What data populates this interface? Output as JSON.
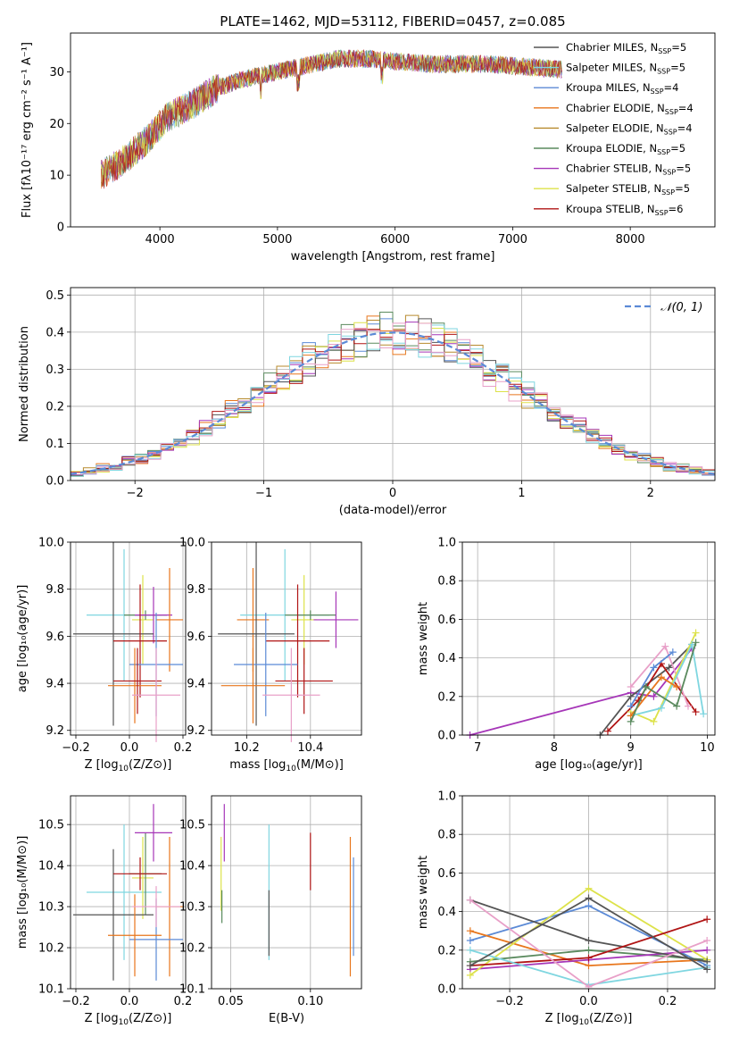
{
  "title": "PLATE=1462, MJD=53112, FIBERID=0457, z=0.085",
  "series_colors": [
    "#5b8ad6",
    "#e8761c",
    "#b78a2d",
    "#5a8a5e",
    "#a636b8",
    "#dde24a",
    "#555555",
    "#b01414",
    "#7fd6e0",
    "#e8a0c8"
  ],
  "chart_data": [
    {
      "type": "line",
      "id": "spectrum",
      "xlabel": "wavelength [Angstrom, rest frame]",
      "ylabel": "Flux [fλ10⁻¹⁷ erg cm⁻² s⁻¹ A⁻¹]",
      "xlim": [
        3240,
        8720
      ],
      "ylim": [
        0,
        37.5
      ],
      "xticks": [
        4000,
        5000,
        6000,
        7000,
        8000
      ],
      "yticks": [
        0,
        10,
        20,
        30
      ],
      "grid": false,
      "legend_position": "upper-right",
      "continuum": {
        "x": [
          3500,
          3700,
          3900,
          4050,
          4300,
          4500,
          4700,
          4900,
          5100,
          5300,
          5500,
          5800,
          6000,
          6300,
          6600,
          6800,
          7100,
          7400
        ],
        "y": [
          10,
          13,
          17,
          21,
          24,
          27,
          28.5,
          29.5,
          30.5,
          31.5,
          32.5,
          32.5,
          32,
          31.5,
          31.5,
          31.5,
          31,
          30.5
        ]
      },
      "series": [
        {
          "name": "Chabrier MILES, N_SSP=5",
          "label_main": "Chabrier MILES, N",
          "label_sub": "SSP",
          "label_tail": "=5"
        },
        {
          "name": "Salpeter MILES, N_SSP=5",
          "label_main": "Salpeter MILES, N",
          "label_sub": "SSP",
          "label_tail": "=5"
        },
        {
          "name": "Kroupa MILES, N_SSP=4",
          "label_main": "Kroupa MILES, N",
          "label_sub": "SSP",
          "label_tail": "=4"
        },
        {
          "name": "Chabrier ELODIE, N_SSP=4",
          "label_main": "Chabrier ELODIE, N",
          "label_sub": "SSP",
          "label_tail": "=4"
        },
        {
          "name": "Salpeter ELODIE, N_SSP=4",
          "label_main": "Salpeter ELODIE, N",
          "label_sub": "SSP",
          "label_tail": "=4"
        },
        {
          "name": "Kroupa ELODIE, N_SSP=5",
          "label_main": "Kroupa ELODIE, N",
          "label_sub": "SSP",
          "label_tail": "=5"
        },
        {
          "name": "Chabrier STELIB, N_SSP=5",
          "label_main": "Chabrier STELIB, N",
          "label_sub": "SSP",
          "label_tail": "=5"
        },
        {
          "name": "Salpeter STELIB, N_SSP=5",
          "label_main": "Salpeter STELIB, N",
          "label_sub": "SSP",
          "label_tail": "=5"
        },
        {
          "name": "Kroupa STELIB, N_SSP=6",
          "label_main": "Kroupa STELIB, N",
          "label_sub": "SSP",
          "label_tail": "=6"
        }
      ]
    },
    {
      "type": "line",
      "id": "residuals",
      "xlabel": "(data-model)/error",
      "ylabel": "Normed distribution",
      "xlim": [
        -2.5,
        2.5
      ],
      "ylim": [
        0,
        0.52
      ],
      "xticks": [
        -2,
        -1,
        0,
        1,
        2
      ],
      "yticks": [
        0.0,
        0.1,
        0.2,
        0.3,
        0.4,
        0.5
      ],
      "grid": true,
      "legend_position": "upper-right",
      "reference_curve": {
        "name": "N(0,1)",
        "label": "𝒩(0, 1)",
        "mean": 0,
        "sigma": 1
      },
      "histogram_bin_width": 0.1
    },
    {
      "type": "scatter",
      "id": "age-vs-Z",
      "xlabel_main": "Z [log",
      "xlabel_sub": "10",
      "xlabel_tail": "(Z/Z⊙)]",
      "ylabel": "age  [log₁₀(age/yr)]",
      "xlim": [
        -0.22,
        0.21
      ],
      "ylim": [
        9.18,
        10.0
      ],
      "xticks": [
        -0.2,
        0.0,
        0.2
      ],
      "yticks": [
        9.2,
        9.4,
        9.6,
        9.8,
        10.0
      ],
      "grid": true,
      "points": [
        {
          "x": -0.02,
          "y": 9.69,
          "xerr": 0.14,
          "yerr": 0.28,
          "color": 8
        },
        {
          "x": 0.05,
          "y": 9.67,
          "xerr": 0.04,
          "yerr": 0.19,
          "color": 5
        },
        {
          "x": 0.06,
          "y": 9.69,
          "xerr": 0.08,
          "yerr": 0.02,
          "color": 3
        },
        {
          "x": 0.09,
          "y": 9.69,
          "xerr": 0.07,
          "yerr": 0.12,
          "color": 4
        },
        {
          "x": 0.15,
          "y": 9.67,
          "xerr": 0.05,
          "yerr": 0.22,
          "color": 1
        },
        {
          "x": -0.06,
          "y": 9.61,
          "xerr": 0.15,
          "yerr": 0.39,
          "color": 6
        },
        {
          "x": 0.04,
          "y": 9.58,
          "xerr": 0.1,
          "yerr": 0.24,
          "color": 7
        },
        {
          "x": 0.1,
          "y": 9.48,
          "xerr": 0.1,
          "yerr": 0.22,
          "color": 0
        },
        {
          "x": 0.02,
          "y": 9.39,
          "xerr": 0.1,
          "yerr": 0.16,
          "color": 1
        },
        {
          "x": 0.03,
          "y": 9.41,
          "xerr": 0.09,
          "yerr": 0.14,
          "color": 7
        },
        {
          "x": 0.1,
          "y": 9.35,
          "xerr": 0.09,
          "yerr": 0.2,
          "color": 9
        }
      ]
    },
    {
      "type": "scatter",
      "id": "age-vs-mass",
      "xlabel_main": "mass [log",
      "xlabel_sub": "10",
      "xlabel_tail": "(M/M⊙)]",
      "ylabel": "",
      "xlim": [
        10.09,
        10.56
      ],
      "ylim": [
        9.18,
        10.0
      ],
      "xticks": [
        10.2,
        10.4
      ],
      "yticks": [
        9.2,
        9.4,
        9.6,
        9.8,
        10.0
      ],
      "grid": true,
      "points": [
        {
          "x": 10.32,
          "y": 9.69,
          "xerr": 0.14,
          "yerr": 0.28,
          "color": 8
        },
        {
          "x": 10.38,
          "y": 9.67,
          "xerr": 0.04,
          "yerr": 0.19,
          "color": 5
        },
        {
          "x": 10.4,
          "y": 9.69,
          "xerr": 0.08,
          "yerr": 0.02,
          "color": 3
        },
        {
          "x": 10.48,
          "y": 9.67,
          "xerr": 0.07,
          "yerr": 0.12,
          "color": 4
        },
        {
          "x": 10.22,
          "y": 9.67,
          "xerr": 0.05,
          "yerr": 0.22,
          "color": 1
        },
        {
          "x": 10.23,
          "y": 9.61,
          "xerr": 0.12,
          "yerr": 0.39,
          "color": 6
        },
        {
          "x": 10.36,
          "y": 9.58,
          "xerr": 0.1,
          "yerr": 0.24,
          "color": 7
        },
        {
          "x": 10.26,
          "y": 9.48,
          "xerr": 0.1,
          "yerr": 0.22,
          "color": 0
        },
        {
          "x": 10.22,
          "y": 9.39,
          "xerr": 0.1,
          "yerr": 0.16,
          "color": 1
        },
        {
          "x": 10.38,
          "y": 9.41,
          "xerr": 0.09,
          "yerr": 0.14,
          "color": 7
        },
        {
          "x": 10.34,
          "y": 9.35,
          "xerr": 0.09,
          "yerr": 0.2,
          "color": 9
        }
      ]
    },
    {
      "type": "line",
      "id": "weight-vs-age",
      "xlabel": "age  [log₁₀(age/yr)]",
      "ylabel": "mass weight",
      "xlim": [
        6.8,
        10.1
      ],
      "ylim": [
        0,
        1.0
      ],
      "xticks": [
        7,
        8,
        9,
        10
      ],
      "yticks": [
        0.0,
        0.2,
        0.4,
        0.6,
        0.8,
        1.0
      ],
      "grid": true,
      "series": [
        {
          "color": 4,
          "x": [
            6.9,
            9.0,
            9.3,
            9.8
          ],
          "y": [
            0.0,
            0.22,
            0.2,
            0.45
          ]
        },
        {
          "color": 6,
          "x": [
            8.6,
            9.0,
            9.5,
            9.8
          ],
          "y": [
            0.0,
            0.2,
            0.35,
            0.47
          ]
        },
        {
          "color": 7,
          "x": [
            8.7,
            9.1,
            9.4,
            9.85
          ],
          "y": [
            0.02,
            0.18,
            0.37,
            0.12
          ]
        },
        {
          "color": 9,
          "x": [
            9.0,
            9.45,
            9.75
          ],
          "y": [
            0.25,
            0.46,
            0.15
          ]
        },
        {
          "color": 5,
          "x": [
            9.0,
            9.3,
            9.85
          ],
          "y": [
            0.12,
            0.07,
            0.53
          ]
        },
        {
          "color": 8,
          "x": [
            9.0,
            9.4,
            9.8,
            9.95
          ],
          "y": [
            0.1,
            0.14,
            0.47,
            0.11
          ]
        },
        {
          "color": 0,
          "x": [
            9.0,
            9.3,
            9.55
          ],
          "y": [
            0.15,
            0.35,
            0.43
          ]
        },
        {
          "color": 1,
          "x": [
            9.0,
            9.4,
            9.6
          ],
          "y": [
            0.1,
            0.3,
            0.25
          ]
        },
        {
          "color": 3,
          "x": [
            9.0,
            9.2,
            9.6,
            9.85
          ],
          "y": [
            0.07,
            0.25,
            0.15,
            0.48
          ]
        }
      ]
    },
    {
      "type": "scatter",
      "id": "mass-vs-Z",
      "xlabel_main": "Z [log",
      "xlabel_sub": "10",
      "xlabel_tail": "(Z/Z⊙)]",
      "ylabel": "mass [log₁₀(M/M⊙)]",
      "xlim": [
        -0.22,
        0.21
      ],
      "ylim": [
        10.1,
        10.57
      ],
      "xticks": [
        -0.2,
        0.0,
        0.2
      ],
      "yticks": [
        10.1,
        10.2,
        10.3,
        10.4,
        10.5
      ],
      "grid": true,
      "points": [
        {
          "x": -0.02,
          "y": 10.335,
          "xerr": 0.14,
          "yerr": 0.165,
          "color": 8
        },
        {
          "x": 0.05,
          "y": 10.37,
          "xerr": 0.04,
          "yerr": 0.1,
          "color": 5
        },
        {
          "x": 0.06,
          "y": 10.38,
          "xerr": 0.06,
          "yerr": 0.1,
          "color": 3
        },
        {
          "x": 0.09,
          "y": 10.48,
          "xerr": 0.07,
          "yerr": 0.07,
          "color": 4
        },
        {
          "x": 0.15,
          "y": 10.3,
          "xerr": 0.05,
          "yerr": 0.17,
          "color": 1
        },
        {
          "x": -0.06,
          "y": 10.28,
          "xerr": 0.15,
          "yerr": 0.16,
          "color": 6
        },
        {
          "x": 0.04,
          "y": 10.38,
          "xerr": 0.1,
          "yerr": 0.04,
          "color": 7
        },
        {
          "x": 0.1,
          "y": 10.22,
          "xerr": 0.1,
          "yerr": 0.1,
          "color": 0
        },
        {
          "x": 0.02,
          "y": 10.23,
          "xerr": 0.1,
          "yerr": 0.1,
          "color": 1
        },
        {
          "x": 0.1,
          "y": 10.3,
          "xerr": 0.09,
          "yerr": 0.05,
          "color": 9
        }
      ]
    },
    {
      "type": "scatter",
      "id": "mass-vs-ebv",
      "xlabel": "E(B-V)",
      "ylabel": "",
      "xlim": [
        0.038,
        0.132
      ],
      "ylim": [
        10.1,
        10.57
      ],
      "xticks": [
        0.05,
        0.1
      ],
      "yticks": [
        10.1,
        10.2,
        10.3,
        10.4,
        10.5
      ],
      "grid": true,
      "points": [
        {
          "x": 0.044,
          "y": 10.38,
          "yerr": 0.09,
          "color": 5
        },
        {
          "x": 0.046,
          "y": 10.48,
          "yerr": 0.07,
          "color": 4
        },
        {
          "x": 0.0445,
          "y": 10.3,
          "yerr": 0.04,
          "color": 3
        },
        {
          "x": 0.074,
          "y": 10.335,
          "yerr": 0.165,
          "color": 8
        },
        {
          "x": 0.074,
          "y": 10.26,
          "yerr": 0.08,
          "color": 6
        },
        {
          "x": 0.1,
          "y": 10.41,
          "yerr": 0.07,
          "color": 7
        },
        {
          "x": 0.125,
          "y": 10.3,
          "yerr": 0.17,
          "color": 1
        },
        {
          "x": 0.127,
          "y": 10.3,
          "yerr": 0.12,
          "color": 0
        }
      ]
    },
    {
      "type": "line",
      "id": "weight-vs-Z",
      "xlabel_main": "Z [log",
      "xlabel_sub": "10",
      "xlabel_tail": "(Z/Z⊙)]",
      "ylabel": "mass weight",
      "xlim": [
        -0.32,
        0.32
      ],
      "ylim": [
        0,
        1.0
      ],
      "xticks": [
        -0.2,
        0.0,
        0.2
      ],
      "yticks": [
        0.0,
        0.2,
        0.4,
        0.6,
        0.8,
        1.0
      ],
      "grid": true,
      "series": [
        {
          "color": 0,
          "x": [
            -0.3,
            0.0,
            0.3
          ],
          "y": [
            0.25,
            0.43,
            0.12
          ]
        },
        {
          "color": 1,
          "x": [
            -0.3,
            0.0,
            0.3
          ],
          "y": [
            0.3,
            0.12,
            0.15
          ]
        },
        {
          "color": 3,
          "x": [
            -0.3,
            0.0,
            0.3
          ],
          "y": [
            0.14,
            0.2,
            0.15
          ]
        },
        {
          "color": 4,
          "x": [
            -0.3,
            0.0,
            0.3
          ],
          "y": [
            0.1,
            0.15,
            0.2
          ]
        },
        {
          "color": 5,
          "x": [
            -0.3,
            0.0,
            0.3
          ],
          "y": [
            0.07,
            0.52,
            0.15
          ]
        },
        {
          "color": 6,
          "x": [
            -0.3,
            0.0,
            0.3
          ],
          "y": [
            0.46,
            0.25,
            0.14
          ]
        },
        {
          "color": 7,
          "x": [
            -0.3,
            0.0,
            0.3
          ],
          "y": [
            0.12,
            0.16,
            0.36
          ]
        },
        {
          "color": 8,
          "x": [
            -0.3,
            0.0,
            0.3
          ],
          "y": [
            0.2,
            0.02,
            0.11
          ]
        },
        {
          "color": 9,
          "x": [
            -0.3,
            0.0,
            0.3
          ],
          "y": [
            0.46,
            0.01,
            0.25
          ]
        },
        {
          "color": 6,
          "x": [
            -0.3,
            0.0,
            0.3
          ],
          "y": [
            0.12,
            0.47,
            0.1
          ]
        }
      ]
    }
  ]
}
